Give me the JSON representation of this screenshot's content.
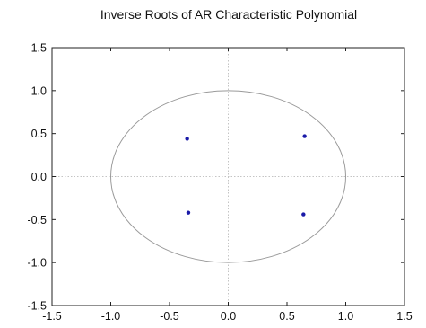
{
  "chart_data": {
    "type": "scatter",
    "title": "Inverse Roots of AR Characteristic Polynomial",
    "xlabel": "",
    "ylabel": "",
    "xlim": [
      -1.5,
      1.5
    ],
    "ylim": [
      -1.5,
      1.5
    ],
    "x_ticks": [
      "-1.5",
      "-1.0",
      "-0.5",
      "0.0",
      "0.5",
      "1.0",
      "1.5"
    ],
    "y_ticks": [
      "1.5",
      "1.0",
      "0.5",
      "0.0",
      "-0.5",
      "-1.0",
      "-1.5"
    ],
    "x_tick_values": [
      -1.5,
      -1.0,
      -0.5,
      0.0,
      0.5,
      1.0,
      1.5
    ],
    "y_tick_values": [
      1.5,
      1.0,
      0.5,
      0.0,
      -0.5,
      -1.0,
      -1.5
    ],
    "unit_circle_radius": 1.0,
    "reference_lines": {
      "x": 0.0,
      "y": 0.0
    },
    "grid": false,
    "legend": "none",
    "points": [
      {
        "x": -0.35,
        "y": 0.44
      },
      {
        "x": 0.65,
        "y": 0.47
      },
      {
        "x": -0.34,
        "y": -0.42
      },
      {
        "x": 0.64,
        "y": -0.44
      }
    ],
    "colors": {
      "points": "#1a1aa8",
      "circle": "#9a9a9a",
      "reference_lines": "#c4c4c4",
      "frame": "#222222"
    }
  }
}
